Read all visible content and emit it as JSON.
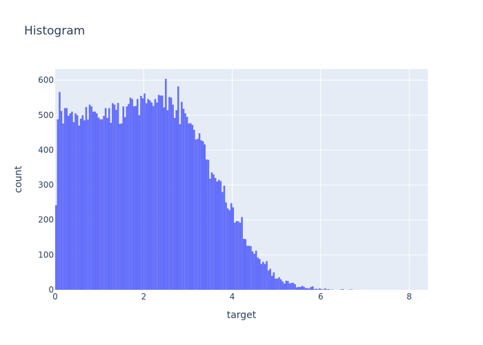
{
  "chart_data": {
    "type": "bar",
    "title": "Histogram",
    "xlabel": "target",
    "ylabel": "count",
    "xlim": [
      0,
      8.42
    ],
    "ylim": [
      0,
      632
    ],
    "bin_width": 0.04,
    "x_start": 0,
    "grid": true,
    "x_ticks": [
      "0",
      "2",
      "4",
      "6",
      "8"
    ],
    "y_ticks": [
      "0",
      "100",
      "200",
      "300",
      "400",
      "500",
      "600"
    ],
    "bar_color": "#636efa",
    "plot_bg": "#e5ecf6",
    "x": [
      0.02,
      0.06,
      0.1,
      0.14,
      0.18,
      0.22,
      0.26,
      0.3,
      0.34,
      0.38,
      0.42,
      0.46,
      0.5,
      0.54,
      0.58,
      0.62,
      0.66,
      0.7,
      0.74,
      0.78,
      0.82,
      0.86,
      0.9,
      0.94,
      0.98,
      1.02,
      1.06,
      1.1,
      1.14,
      1.18,
      1.22,
      1.26,
      1.3,
      1.34,
      1.38,
      1.42,
      1.46,
      1.5,
      1.54,
      1.58,
      1.62,
      1.66,
      1.7,
      1.74,
      1.78,
      1.82,
      1.86,
      1.9,
      1.94,
      1.98,
      2.02,
      2.06,
      2.1,
      2.14,
      2.18,
      2.22,
      2.26,
      2.3,
      2.34,
      2.38,
      2.42,
      2.46,
      2.5,
      2.54,
      2.58,
      2.62,
      2.66,
      2.7,
      2.74,
      2.78,
      2.82,
      2.86,
      2.9,
      2.94,
      2.98,
      3.02,
      3.06,
      3.1,
      3.14,
      3.18,
      3.22,
      3.26,
      3.3,
      3.34,
      3.38,
      3.42,
      3.46,
      3.5,
      3.54,
      3.58,
      3.62,
      3.66,
      3.7,
      3.74,
      3.78,
      3.82,
      3.86,
      3.9,
      3.94,
      3.98,
      4.02,
      4.06,
      4.1,
      4.14,
      4.18,
      4.22,
      4.26,
      4.3,
      4.34,
      4.38,
      4.42,
      4.46,
      4.5,
      4.54,
      4.58,
      4.62,
      4.66,
      4.7,
      4.74,
      4.78,
      4.82,
      4.86,
      4.9,
      4.94,
      4.98,
      5.02,
      5.06,
      5.1,
      5.14,
      5.18,
      5.22,
      5.26,
      5.3,
      5.34,
      5.38,
      5.42,
      5.46,
      5.5,
      5.54,
      5.58,
      5.62,
      5.66,
      5.7,
      5.74,
      5.78,
      5.82,
      5.86,
      5.9,
      5.94,
      5.98,
      6.02,
      6.06,
      6.1,
      6.14,
      6.18,
      6.22,
      6.26,
      6.3,
      6.34,
      6.38,
      6.42,
      6.46,
      6.5,
      6.54,
      6.58,
      6.62,
      6.66,
      6.7,
      6.74,
      6.78,
      6.82,
      6.86,
      6.9,
      6.94,
      6.98,
      7.02,
      7.06,
      7.1,
      7.14,
      7.18,
      7.22,
      7.26,
      7.3,
      7.34,
      7.38,
      7.42,
      7.46,
      7.5,
      7.54,
      7.58,
      7.62,
      7.66,
      7.7,
      7.74,
      7.78,
      7.82,
      7.86,
      7.9,
      7.94,
      7.98,
      8.02,
      8.06,
      8.1,
      8.14,
      8.18,
      8.22,
      8.26,
      8.3,
      8.34,
      8.38
    ],
    "values": [
      242,
      488,
      566,
      512,
      476,
      520,
      520,
      498,
      505,
      510,
      480,
      505,
      500,
      470,
      490,
      500,
      485,
      523,
      487,
      530,
      525,
      510,
      510,
      505,
      493,
      488,
      488,
      498,
      520,
      492,
      520,
      478,
      534,
      530,
      515,
      535,
      475,
      476,
      525,
      494,
      525,
      532,
      550,
      546,
      525,
      526,
      546,
      500,
      555,
      548,
      562,
      534,
      546,
      542,
      536,
      526,
      546,
      536,
      558,
      556,
      556,
      522,
      604,
      514,
      552,
      550,
      530,
      492,
      514,
      582,
      474,
      538,
      518,
      505,
      495,
      476,
      477,
      472,
      458,
      430,
      432,
      448,
      428,
      425,
      416,
      373,
      372,
      318,
      336,
      330,
      320,
      310,
      315,
      311,
      280,
      298,
      250,
      233,
      228,
      248,
      236,
      192,
      197,
      196,
      192,
      208,
      146,
      145,
      126,
      126,
      125,
      110,
      103,
      112,
      92,
      88,
      74,
      80,
      74,
      82,
      55,
      60,
      40,
      50,
      32,
      32,
      36,
      30,
      24,
      18,
      26,
      25,
      18,
      20,
      20,
      16,
      7,
      8,
      8,
      11,
      9,
      5,
      5,
      4,
      8,
      10,
      2,
      3,
      2,
      4,
      2,
      1,
      4,
      1,
      2,
      0,
      1,
      0,
      0,
      0,
      0,
      1,
      2,
      0,
      0,
      0,
      1,
      1,
      0,
      0,
      0,
      0,
      0,
      0,
      0,
      0,
      0,
      0,
      0,
      0,
      0,
      0,
      0,
      0,
      0,
      0,
      0,
      0,
      0,
      0,
      0,
      0,
      0,
      0,
      0,
      0,
      0,
      0,
      0,
      0,
      0,
      0,
      0,
      0,
      0,
      0,
      0,
      0,
      0,
      0
    ]
  }
}
